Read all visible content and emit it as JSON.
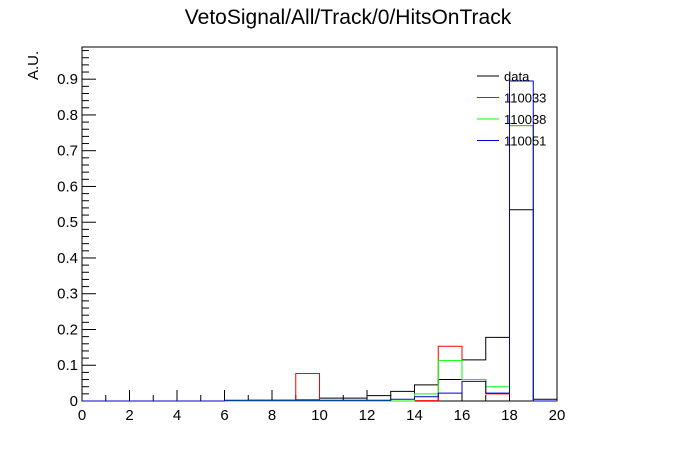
{
  "chart_data": {
    "type": "histogram",
    "title": "VetoSignal/All/Track/0/HitsOnTrack",
    "xlabel": "",
    "ylabel": "A.U.",
    "xlim": [
      0,
      20
    ],
    "ylim": [
      0,
      0.99
    ],
    "bin_edges": [
      0,
      1,
      2,
      3,
      4,
      5,
      6,
      7,
      8,
      9,
      10,
      11,
      12,
      13,
      14,
      15,
      16,
      17,
      18,
      19,
      20
    ],
    "x_ticks": [
      "0",
      "2",
      "4",
      "6",
      "8",
      "10",
      "12",
      "14",
      "16",
      "18",
      "20"
    ],
    "y_ticks": [
      "0",
      "0.1",
      "0.2",
      "0.3",
      "0.4",
      "0.5",
      "0.6",
      "0.7",
      "0.8",
      "0.9"
    ],
    "legend_position": "top-right",
    "series": [
      {
        "name": "data",
        "color": "#000000",
        "values": [
          0,
          0,
          0,
          0,
          0,
          0,
          0.001,
          0.002,
          0.002,
          0.003,
          0.008,
          0.008,
          0.015,
          0.027,
          0.045,
          0.06,
          0.115,
          0.178,
          0.535,
          0.005
        ]
      },
      {
        "name": "110033",
        "color": "#ff0000",
        "values": [
          0,
          0,
          0,
          0,
          0,
          0,
          0,
          0,
          0,
          0.077,
          0,
          0,
          0,
          0,
          0.001,
          0.153,
          0.06,
          0.02,
          0.77,
          0
        ]
      },
      {
        "name": "110038",
        "color": "#00ff00",
        "values": [
          0,
          0,
          0,
          0,
          0,
          0,
          0,
          0,
          0,
          0,
          0,
          0,
          0,
          0,
          0.02,
          0.113,
          0.06,
          0.04,
          0.77,
          0
        ]
      },
      {
        "name": "110051",
        "color": "#0000cc",
        "values": [
          0,
          0,
          0,
          0,
          0,
          0,
          0.002,
          0.002,
          0.002,
          0.002,
          0.002,
          0.002,
          0.002,
          0.005,
          0.012,
          0.022,
          0.055,
          0.022,
          0.895,
          0
        ]
      }
    ]
  }
}
